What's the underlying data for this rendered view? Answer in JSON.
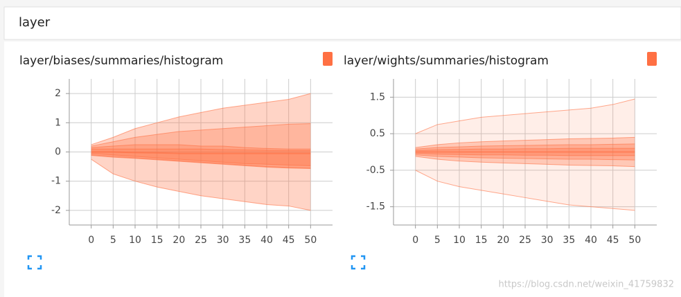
{
  "header": {
    "title": "layer"
  },
  "chart_data": [
    {
      "type": "area",
      "title": "layer/biases/summaries/histogram",
      "color": "#ff7043",
      "x": [
        0,
        5,
        10,
        15,
        20,
        25,
        30,
        35,
        40,
        45,
        50
      ],
      "series": [
        {
          "values": [
            0.25,
            0.5,
            0.8,
            1.0,
            1.2,
            1.35,
            1.5,
            1.6,
            1.7,
            1.8,
            2.0
          ]
        },
        {
          "values": [
            0.2,
            0.35,
            0.5,
            0.6,
            0.7,
            0.75,
            0.8,
            0.85,
            0.9,
            0.95,
            0.97
          ]
        },
        {
          "values": [
            0.15,
            0.2,
            0.25,
            0.25,
            0.25,
            0.2,
            0.2,
            0.15,
            0.12,
            0.1,
            0.1
          ]
        },
        {
          "values": [
            0.1,
            0.1,
            0.1,
            0.1,
            0.1,
            0.1,
            0.08,
            0.07,
            0.06,
            0.05,
            0.05
          ]
        },
        {
          "values": [
            0,
            0,
            -0.02,
            -0.03,
            -0.05,
            -0.05,
            -0.05,
            -0.05,
            -0.05,
            -0.05,
            -0.05
          ]
        },
        {
          "values": [
            -0.05,
            -0.1,
            -0.15,
            -0.2,
            -0.25,
            -0.3,
            -0.35,
            -0.4,
            -0.42,
            -0.45,
            -0.47
          ]
        },
        {
          "values": [
            -0.1,
            -0.15,
            -0.2,
            -0.25,
            -0.3,
            -0.35,
            -0.4,
            -0.45,
            -0.5,
            -0.53,
            -0.55
          ]
        },
        {
          "values": [
            -0.12,
            -0.18,
            -0.22,
            -0.27,
            -0.32,
            -0.37,
            -0.42,
            -0.47,
            -0.52,
            -0.55,
            -0.57
          ]
        },
        {
          "values": [
            -0.25,
            -0.75,
            -1.0,
            -1.2,
            -1.35,
            -1.5,
            -1.6,
            -1.7,
            -1.8,
            -1.85,
            -2.0
          ]
        }
      ],
      "xlim": [
        -5,
        55
      ],
      "ylim": [
        -2.5,
        2.5
      ],
      "xticks": [
        0,
        5,
        10,
        15,
        20,
        25,
        30,
        35,
        40,
        45,
        50
      ],
      "yticks": [
        -2,
        -1,
        0,
        1,
        2
      ],
      "grid": true
    },
    {
      "type": "area",
      "title": "layer/wights/summaries/histogram",
      "color": "#ff7043",
      "x": [
        0,
        5,
        10,
        15,
        20,
        25,
        30,
        35,
        40,
        45,
        50
      ],
      "series": [
        {
          "values": [
            0.5,
            0.75,
            0.85,
            0.95,
            1.0,
            1.05,
            1.1,
            1.15,
            1.2,
            1.3,
            1.45
          ]
        },
        {
          "values": [
            0.12,
            0.2,
            0.25,
            0.28,
            0.3,
            0.32,
            0.34,
            0.36,
            0.37,
            0.38,
            0.4
          ]
        },
        {
          "values": [
            0.08,
            0.12,
            0.14,
            0.16,
            0.17,
            0.18,
            0.19,
            0.2,
            0.2,
            0.21,
            0.22
          ]
        },
        {
          "values": [
            0.04,
            0.06,
            0.07,
            0.08,
            0.08,
            0.09,
            0.09,
            0.1,
            0.1,
            0.1,
            0.1
          ]
        },
        {
          "values": [
            0,
            0,
            0,
            0,
            0,
            0,
            0,
            0,
            0,
            0,
            0
          ]
        },
        {
          "values": [
            -0.04,
            -0.06,
            -0.07,
            -0.08,
            -0.08,
            -0.09,
            -0.09,
            -0.1,
            -0.1,
            -0.1,
            -0.1
          ]
        },
        {
          "values": [
            -0.08,
            -0.12,
            -0.14,
            -0.16,
            -0.17,
            -0.18,
            -0.19,
            -0.2,
            -0.2,
            -0.21,
            -0.22
          ]
        },
        {
          "values": [
            -0.12,
            -0.2,
            -0.25,
            -0.28,
            -0.3,
            -0.32,
            -0.34,
            -0.36,
            -0.37,
            -0.38,
            -0.4
          ]
        },
        {
          "values": [
            -0.5,
            -0.8,
            -0.95,
            -1.05,
            -1.15,
            -1.25,
            -1.35,
            -1.45,
            -1.5,
            -1.55,
            -1.6
          ]
        }
      ],
      "xlim": [
        -5,
        55
      ],
      "ylim": [
        -2,
        2
      ],
      "xticks": [
        0,
        5,
        10,
        15,
        20,
        25,
        30,
        35,
        40,
        45,
        50
      ],
      "yticks": [
        -1.5,
        -0.5,
        0.5,
        1.5
      ],
      "grid": true
    }
  ],
  "watermark": "https://blog.csdn.net/weixin_41759832"
}
